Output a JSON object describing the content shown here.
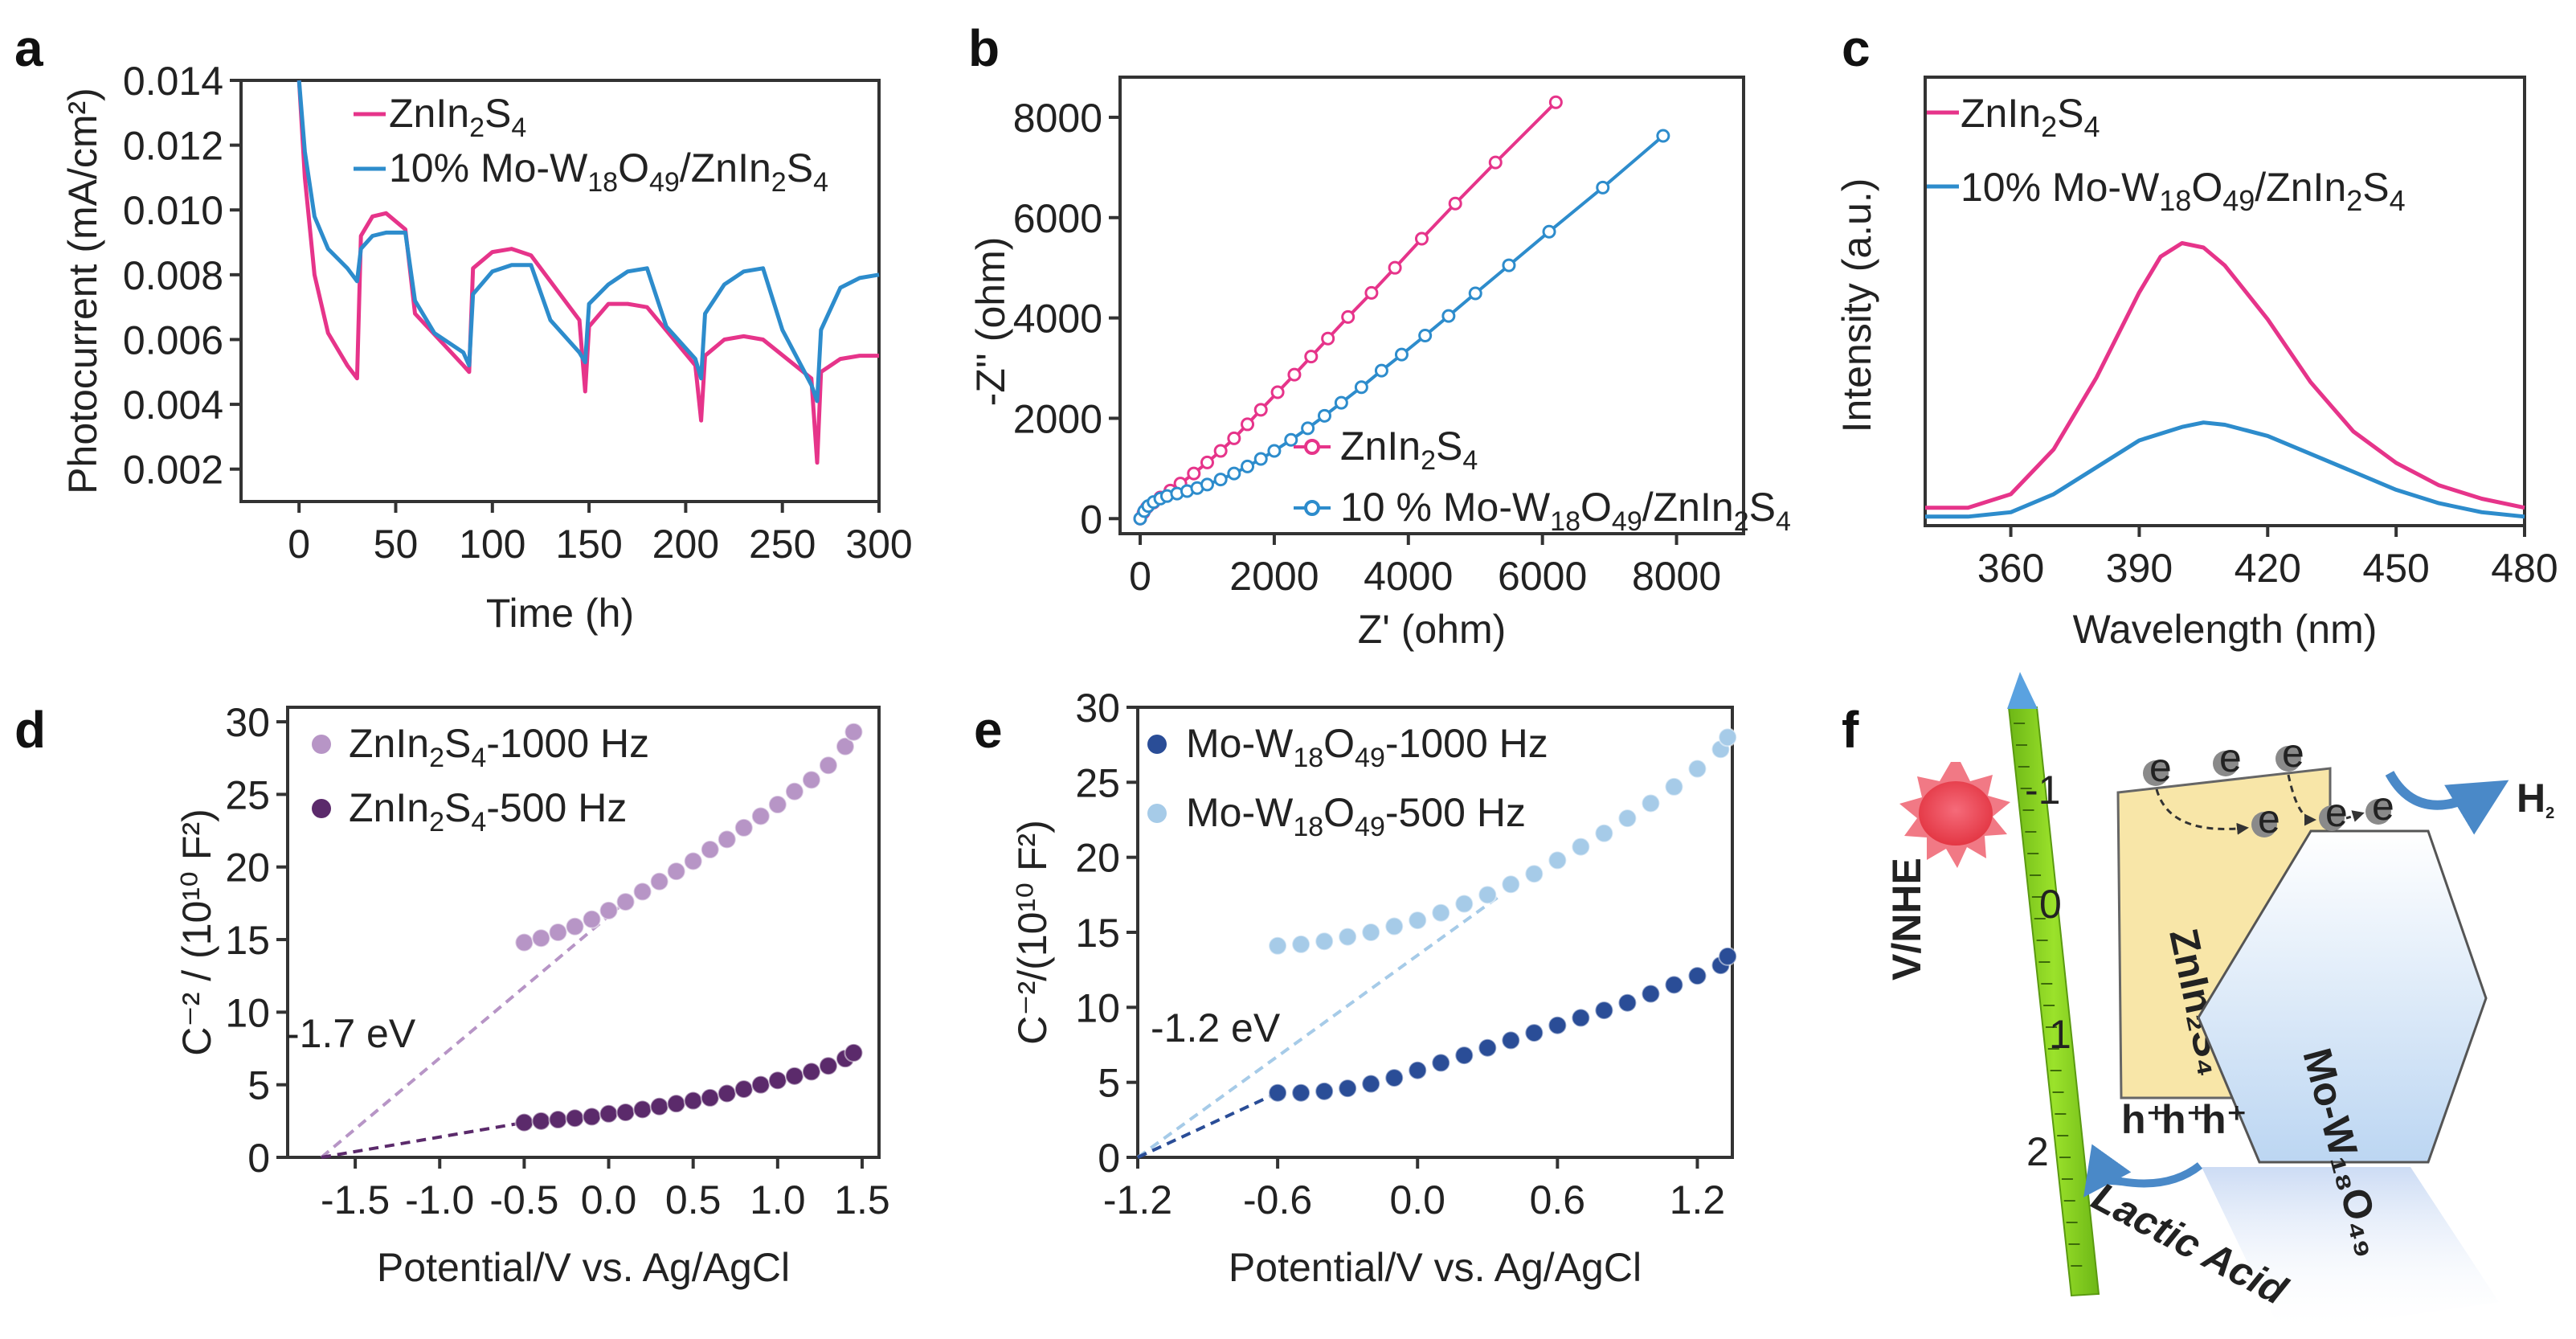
{
  "colors": {
    "pink": "#e6348a",
    "blue": "#2d8ccc",
    "lightPurple": "#b795c6",
    "darkPurple": "#5b2a6b",
    "navy": "#2a4d97",
    "lightBlue": "#a6cbe8",
    "green": "#8ed11f"
  },
  "chart_data": [
    {
      "panel": "a",
      "letter": "a",
      "type": "line",
      "xlabel": "Time (h)",
      "ylabel": "Photocurrent (mA/cm²)",
      "xlim": [
        -30,
        300
      ],
      "ylim": [
        0.001,
        0.014
      ],
      "xticks": [
        0,
        50,
        100,
        150,
        200,
        250,
        300
      ],
      "xtick_labels": [
        "0",
        "50",
        "100",
        "150",
        "200",
        "250",
        "300"
      ],
      "yticks": [
        0.002,
        0.004,
        0.006,
        0.008,
        0.01,
        0.012,
        0.014
      ],
      "ytick_labels": [
        "0.002",
        "0.004",
        "0.006",
        "0.008",
        "0.010",
        "0.012",
        "0.014"
      ],
      "series": [
        {
          "name": "ZnIn2S4",
          "color": "#e6348a",
          "x": [
            0,
            3,
            8,
            15,
            25,
            30,
            32,
            38,
            45,
            55,
            60,
            85,
            88,
            90,
            100,
            110,
            120,
            145,
            148,
            150,
            160,
            170,
            180,
            205,
            208,
            210,
            220,
            230,
            240,
            265,
            268,
            270,
            280,
            290,
            300
          ],
          "y": [
            0.014,
            0.011,
            0.008,
            0.0062,
            0.0052,
            0.0048,
            0.0092,
            0.0098,
            0.0099,
            0.0094,
            0.0068,
            0.0052,
            0.005,
            0.0082,
            0.0087,
            0.0088,
            0.0086,
            0.0066,
            0.0044,
            0.0064,
            0.0071,
            0.0071,
            0.007,
            0.0052,
            0.0035,
            0.0055,
            0.006,
            0.0061,
            0.006,
            0.0048,
            0.0022,
            0.005,
            0.0054,
            0.0055,
            0.0055
          ]
        },
        {
          "name": "10% Mo-W18O49/ZnIn2S4",
          "color": "#2d8ccc",
          "x": [
            0,
            3,
            8,
            15,
            25,
            30,
            32,
            38,
            45,
            55,
            60,
            70,
            85,
            88,
            90,
            100,
            110,
            120,
            130,
            145,
            148,
            150,
            160,
            170,
            180,
            190,
            205,
            208,
            210,
            220,
            230,
            240,
            250,
            265,
            268,
            270,
            280,
            290,
            300
          ],
          "y": [
            0.014,
            0.0118,
            0.0098,
            0.0088,
            0.0082,
            0.0078,
            0.0088,
            0.0092,
            0.0093,
            0.0093,
            0.0072,
            0.0062,
            0.0056,
            0.0052,
            0.0074,
            0.0081,
            0.0083,
            0.0083,
            0.0066,
            0.0056,
            0.0053,
            0.0071,
            0.0077,
            0.0081,
            0.0082,
            0.0064,
            0.0054,
            0.0048,
            0.0068,
            0.0077,
            0.0081,
            0.0082,
            0.0063,
            0.0046,
            0.0041,
            0.0063,
            0.0076,
            0.0079,
            0.008
          ]
        }
      ]
    },
    {
      "panel": "b",
      "letter": "b",
      "type": "scatter",
      "xlabel": "Z' (ohm)",
      "ylabel": "-Z'' (ohm)",
      "xlim": [
        -300,
        9000
      ],
      "ylim": [
        -300,
        8800
      ],
      "xticks": [
        0,
        2000,
        4000,
        6000,
        8000
      ],
      "xtick_labels": [
        "0",
        "2000",
        "4000",
        "6000",
        "8000"
      ],
      "yticks": [
        0,
        2000,
        4000,
        6000,
        8000
      ],
      "ytick_labels": [
        "0",
        "2000",
        "4000",
        "6000",
        "8000"
      ],
      "series": [
        {
          "name": "ZnIn2S4",
          "color": "#e6348a",
          "x": [
            0,
            50,
            100,
            200,
            300,
            450,
            600,
            800,
            1000,
            1200,
            1400,
            1600,
            1800,
            2050,
            2300,
            2550,
            2800,
            3100,
            3450,
            3800,
            4200,
            4700,
            5300,
            6200
          ],
          "y": [
            0,
            120,
            220,
            320,
            420,
            560,
            700,
            900,
            1120,
            1350,
            1600,
            1880,
            2170,
            2520,
            2870,
            3230,
            3590,
            4020,
            4500,
            5000,
            5580,
            6280,
            7100,
            8300
          ]
        },
        {
          "name": "10 % Mo-W18O49/ZnIn2S4",
          "color": "#2d8ccc",
          "x": [
            0,
            60,
            120,
            200,
            300,
            400,
            550,
            700,
            850,
            1000,
            1200,
            1400,
            1600,
            1800,
            2000,
            2250,
            2500,
            2750,
            3000,
            3300,
            3600,
            3900,
            4250,
            4600,
            5000,
            5500,
            6100,
            6900,
            7800
          ],
          "y": [
            0,
            150,
            250,
            330,
            400,
            450,
            500,
            550,
            610,
            680,
            780,
            900,
            1040,
            1190,
            1350,
            1570,
            1800,
            2050,
            2310,
            2620,
            2950,
            3270,
            3650,
            4040,
            4490,
            5050,
            5720,
            6600,
            7630
          ]
        }
      ]
    },
    {
      "panel": "c",
      "letter": "c",
      "type": "line",
      "xlabel": "Wavelength (nm)",
      "ylabel": "Intensity (a.u.)",
      "xlim": [
        340,
        480
      ],
      "ylim": [
        0,
        1
      ],
      "xticks": [
        360,
        390,
        420,
        450,
        480
      ],
      "xtick_labels": [
        "360",
        "390",
        "420",
        "450",
        "480"
      ],
      "yticks": [],
      "ytick_labels": [],
      "series": [
        {
          "name": "ZnIn2S4",
          "color": "#e6348a",
          "x": [
            340,
            350,
            360,
            370,
            380,
            390,
            395,
            400,
            405,
            410,
            420,
            430,
            440,
            450,
            460,
            470,
            480
          ],
          "y": [
            0.04,
            0.04,
            0.07,
            0.17,
            0.33,
            0.52,
            0.6,
            0.63,
            0.62,
            0.58,
            0.46,
            0.32,
            0.21,
            0.14,
            0.09,
            0.06,
            0.04
          ]
        },
        {
          "name": "10% Mo-W18O49/ZnIn2S4",
          "color": "#2d8ccc",
          "x": [
            340,
            350,
            360,
            370,
            380,
            390,
            400,
            405,
            410,
            420,
            430,
            440,
            450,
            460,
            470,
            480
          ],
          "y": [
            0.02,
            0.02,
            0.03,
            0.07,
            0.13,
            0.19,
            0.22,
            0.23,
            0.225,
            0.2,
            0.16,
            0.12,
            0.08,
            0.05,
            0.03,
            0.02
          ]
        }
      ]
    },
    {
      "panel": "d",
      "letter": "d",
      "type": "scatter",
      "xlabel": "Potential/V vs. Ag/AgCl",
      "ylabel": "C⁻² / (10¹⁰ F²)",
      "xlim": [
        -1.9,
        1.6
      ],
      "ylim": [
        0,
        31
      ],
      "xticks": [
        -1.5,
        -1.0,
        -0.5,
        0.0,
        0.5,
        1.0,
        1.5
      ],
      "xtick_labels": [
        "-1.5",
        "-1.0",
        "-0.5",
        "0.0",
        "0.5",
        "1.0",
        "1.5"
      ],
      "yticks": [
        0,
        5,
        10,
        15,
        20,
        25,
        30
      ],
      "ytick_labels": [
        "0",
        "5",
        "10",
        "15",
        "20",
        "25",
        "30"
      ],
      "annotation": "-1.7 eV",
      "series": [
        {
          "name": "ZnIn2S4-1000 Hz",
          "color": "#b795c6",
          "x": [
            -0.5,
            -0.4,
            -0.3,
            -0.2,
            -0.1,
            0.0,
            0.1,
            0.2,
            0.3,
            0.4,
            0.5,
            0.6,
            0.7,
            0.8,
            0.9,
            1.0,
            1.1,
            1.2,
            1.3,
            1.4,
            1.45
          ],
          "y": [
            14.8,
            15.1,
            15.5,
            15.9,
            16.4,
            17.0,
            17.6,
            18.3,
            19.0,
            19.7,
            20.4,
            21.2,
            21.9,
            22.7,
            23.5,
            24.3,
            25.2,
            26.0,
            27.0,
            28.3,
            29.3
          ]
        },
        {
          "name": "ZnIn2S4-500 Hz",
          "color": "#5b2a6b",
          "x": [
            -0.5,
            -0.4,
            -0.3,
            -0.2,
            -0.1,
            0.0,
            0.1,
            0.2,
            0.3,
            0.4,
            0.5,
            0.6,
            0.7,
            0.8,
            0.9,
            1.0,
            1.1,
            1.2,
            1.3,
            1.4,
            1.45
          ],
          "y": [
            2.4,
            2.5,
            2.6,
            2.7,
            2.8,
            3.0,
            3.1,
            3.3,
            3.5,
            3.7,
            3.9,
            4.1,
            4.4,
            4.7,
            5.0,
            5.3,
            5.6,
            5.9,
            6.3,
            6.8,
            7.2
          ]
        }
      ],
      "fit_lines": [
        {
          "color": "#b795c6",
          "x": [
            -1.7,
            0.1
          ],
          "y": [
            0,
            17.6
          ]
        },
        {
          "color": "#5b2a6b",
          "x": [
            -1.7,
            -0.5
          ],
          "y": [
            0,
            2.4
          ]
        }
      ]
    },
    {
      "panel": "e",
      "letter": "e",
      "type": "scatter",
      "xlabel": "Potential/V vs. Ag/AgCl",
      "ylabel": "C⁻²/(10¹⁰ F²)",
      "xlim": [
        -1.2,
        1.35
      ],
      "ylim": [
        0,
        30
      ],
      "xticks": [
        -1.2,
        -0.6,
        0.0,
        0.6,
        1.2
      ],
      "xtick_labels": [
        "-1.2",
        "-0.6",
        "0.0",
        "0.6",
        "1.2"
      ],
      "yticks": [
        0,
        5,
        10,
        15,
        20,
        25,
        30
      ],
      "ytick_labels": [
        "0",
        "5",
        "10",
        "15",
        "20",
        "25",
        "30"
      ],
      "annotation": "-1.2 eV",
      "series": [
        {
          "name": "Mo-W18O49-1000 Hz",
          "color": "#2a4d97",
          "x": [
            -0.6,
            -0.5,
            -0.4,
            -0.3,
            -0.2,
            -0.1,
            0.0,
            0.1,
            0.2,
            0.3,
            0.4,
            0.5,
            0.6,
            0.7,
            0.8,
            0.9,
            1.0,
            1.1,
            1.2,
            1.3,
            1.33
          ],
          "y": [
            4.3,
            4.3,
            4.4,
            4.6,
            4.9,
            5.3,
            5.8,
            6.3,
            6.8,
            7.3,
            7.8,
            8.3,
            8.8,
            9.3,
            9.8,
            10.3,
            10.9,
            11.5,
            12.1,
            12.8,
            13.4
          ]
        },
        {
          "name": "Mo-W18O49-500 Hz",
          "color": "#a6cbe8",
          "x": [
            -0.6,
            -0.5,
            -0.4,
            -0.3,
            -0.2,
            -0.1,
            0.0,
            0.1,
            0.2,
            0.3,
            0.4,
            0.5,
            0.6,
            0.7,
            0.8,
            0.9,
            1.0,
            1.1,
            1.2,
            1.3,
            1.33
          ],
          "y": [
            14.1,
            14.2,
            14.4,
            14.7,
            15.0,
            15.4,
            15.8,
            16.3,
            16.9,
            17.5,
            18.2,
            18.9,
            19.8,
            20.7,
            21.6,
            22.6,
            23.6,
            24.7,
            25.9,
            27.2,
            28.0
          ]
        }
      ],
      "fit_lines": [
        {
          "color": "#a6cbe8",
          "x": [
            -1.2,
            0.35
          ],
          "y": [
            0,
            17.4
          ]
        },
        {
          "color": "#2a4d97",
          "x": [
            -1.2,
            -0.6
          ],
          "y": [
            0,
            4.3
          ]
        }
      ]
    }
  ],
  "schematic": {
    "letter": "f",
    "axis_label": "V/NHE",
    "scale": [
      "-1",
      "0",
      "1",
      "2"
    ],
    "semiconductor": "ZnIn₂S₄",
    "cocatalyst": "Mo-W₁₈O₄₉",
    "electron": "e",
    "hole": "h⁺",
    "product": "H₂",
    "sacrificial": "Lactic Acid"
  }
}
